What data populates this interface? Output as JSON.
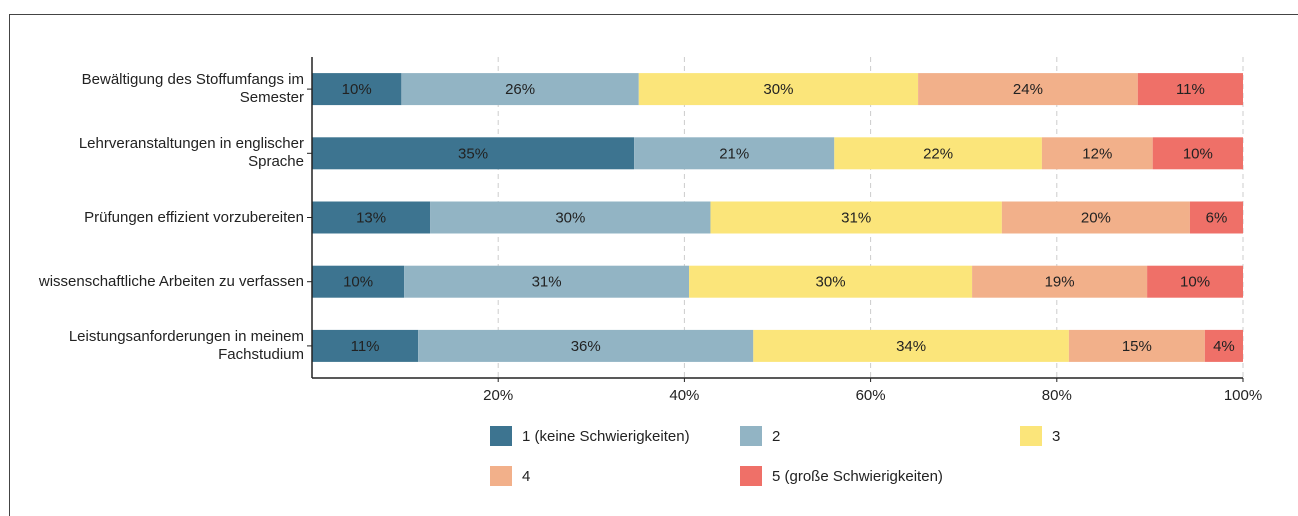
{
  "chart_data": {
    "type": "stacked-bar-horizontal",
    "categories": [
      "Bewältigung des Stoffumfangs im Semester",
      "Lehrveranstaltungen in englischer Sprache",
      "Prüfungen effizient vorzubereiten",
      "wissenschaftliche Arbeiten zu verfassen",
      "Leistungsanforderungen in meinem Fachstudium"
    ],
    "series": [
      {
        "name": "1 (keine Schwierigkeiten)",
        "color": "#3d7490",
        "values": [
          9.6,
          34.6,
          12.7,
          9.9,
          11.4
        ],
        "value_labels": [
          "10%",
          "35%",
          "13%",
          "10%",
          "11%"
        ]
      },
      {
        "name": "2",
        "color": "#92b4c4",
        "values": [
          25.5,
          21.5,
          30.1,
          30.6,
          36.0
        ],
        "value_labels": [
          "26%",
          "21%",
          "30%",
          "31%",
          "36%"
        ]
      },
      {
        "name": "3",
        "color": "#fbe57a",
        "values": [
          30.0,
          22.3,
          31.3,
          30.4,
          33.9
        ],
        "value_labels": [
          "30%",
          "22%",
          "31%",
          "30%",
          "34%"
        ]
      },
      {
        "name": "4",
        "color": "#f2b08a",
        "values": [
          23.6,
          11.9,
          20.2,
          18.8,
          14.6
        ],
        "value_labels": [
          "24%",
          "12%",
          "20%",
          "19%",
          "15%"
        ]
      },
      {
        "name": "5 (große Schwierigkeiten)",
        "color": "#ef7068",
        "values": [
          11.3,
          9.7,
          5.7,
          10.3,
          4.1
        ],
        "value_labels": [
          "11%",
          "10%",
          "6%",
          "10%",
          "4%"
        ]
      }
    ],
    "xlim": [
      0,
      100
    ],
    "xticks": [
      {
        "value": 20,
        "label": "20%"
      },
      {
        "value": 40,
        "label": "40%"
      },
      {
        "value": 60,
        "label": "60%"
      },
      {
        "value": 80,
        "label": "80%"
      },
      {
        "value": 100,
        "label": "100%"
      }
    ],
    "grid": true
  }
}
